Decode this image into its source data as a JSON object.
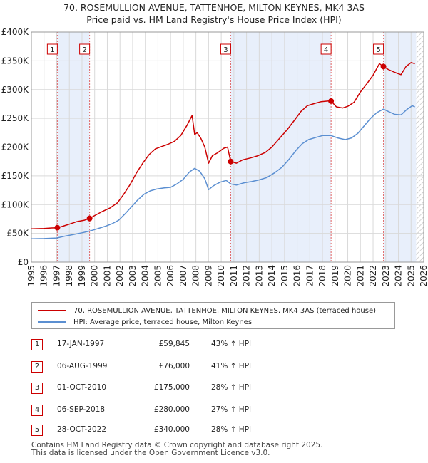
{
  "title_line1": "70, ROSEMULLION AVENUE, TATTENHOE, MILTON KEYNES, MK4 3AS",
  "title_line2": "Price paid vs. HM Land Registry's House Price Index (HPI)",
  "chart_data": {
    "type": "line",
    "title": "70, ROSEMULLION AVENUE, TATTENHOE, MILTON KEYNES, MK4 3AS — Price paid vs. HM Land Registry's House Price Index (HPI)",
    "xlabel": "",
    "ylabel": "",
    "xlim": [
      1995,
      2026
    ],
    "ylim": [
      0,
      400000
    ],
    "x_ticks": [
      "1995",
      "1996",
      "1997",
      "1998",
      "1999",
      "2000",
      "2001",
      "2002",
      "2003",
      "2004",
      "2005",
      "2006",
      "2007",
      "2008",
      "2009",
      "2010",
      "2011",
      "2012",
      "2013",
      "2014",
      "2015",
      "2016",
      "2017",
      "2018",
      "2019",
      "2020",
      "2021",
      "2022",
      "2023",
      "2024",
      "2025",
      "2026"
    ],
    "y_ticks": [
      {
        "value": 0,
        "label": "£0"
      },
      {
        "value": 50000,
        "label": "£50K"
      },
      {
        "value": 100000,
        "label": "£100K"
      },
      {
        "value": 150000,
        "label": "£150K"
      },
      {
        "value": 200000,
        "label": "£200K"
      },
      {
        "value": 250000,
        "label": "£250K"
      },
      {
        "value": 300000,
        "label": "£300K"
      },
      {
        "value": 350000,
        "label": "£350K"
      },
      {
        "value": 400000,
        "label": "£400K"
      }
    ],
    "series": [
      {
        "name": "70, ROSEMULLION AVENUE, TATTENHOE, MILTON KEYNES, MK4 3AS (terraced house)",
        "color": "#cc0000",
        "points": [
          [
            1995.0,
            58000
          ],
          [
            1996.0,
            58500
          ],
          [
            1996.6,
            59500
          ],
          [
            1997.05,
            59845
          ],
          [
            1997.5,
            62500
          ],
          [
            1998.0,
            66000
          ],
          [
            1998.6,
            70500
          ],
          [
            1999.2,
            73000
          ],
          [
            1999.6,
            76000
          ],
          [
            2000.0,
            81000
          ],
          [
            2000.6,
            88000
          ],
          [
            2001.2,
            94000
          ],
          [
            2001.8,
            103000
          ],
          [
            2002.3,
            118000
          ],
          [
            2002.8,
            135000
          ],
          [
            2003.3,
            155000
          ],
          [
            2003.8,
            172000
          ],
          [
            2004.3,
            187000
          ],
          [
            2004.8,
            197000
          ],
          [
            2005.3,
            201000
          ],
          [
            2005.8,
            205000
          ],
          [
            2006.3,
            210000
          ],
          [
            2006.8,
            220000
          ],
          [
            2007.3,
            238000
          ],
          [
            2007.7,
            255000
          ],
          [
            2007.9,
            222000
          ],
          [
            2008.1,
            225000
          ],
          [
            2008.4,
            215000
          ],
          [
            2008.7,
            200000
          ],
          [
            2009.0,
            172000
          ],
          [
            2009.3,
            185000
          ],
          [
            2009.7,
            190000
          ],
          [
            2010.2,
            198000
          ],
          [
            2010.5,
            200000
          ],
          [
            2010.75,
            175000
          ],
          [
            2011.2,
            172000
          ],
          [
            2011.7,
            178000
          ],
          [
            2012.3,
            181000
          ],
          [
            2012.9,
            185000
          ],
          [
            2013.5,
            191000
          ],
          [
            2014.0,
            200000
          ],
          [
            2014.6,
            215000
          ],
          [
            2015.2,
            230000
          ],
          [
            2015.8,
            247000
          ],
          [
            2016.3,
            262000
          ],
          [
            2016.8,
            272000
          ],
          [
            2017.4,
            276000
          ],
          [
            2017.9,
            279000
          ],
          [
            2018.4,
            280000
          ],
          [
            2018.68,
            280000
          ],
          [
            2019.1,
            270000
          ],
          [
            2019.6,
            268000
          ],
          [
            2020.0,
            271000
          ],
          [
            2020.5,
            278000
          ],
          [
            2021.0,
            296000
          ],
          [
            2021.5,
            310000
          ],
          [
            2022.0,
            325000
          ],
          [
            2022.5,
            345000
          ],
          [
            2022.82,
            340000
          ],
          [
            2023.2,
            335000
          ],
          [
            2023.7,
            330000
          ],
          [
            2024.2,
            326000
          ],
          [
            2024.6,
            340000
          ],
          [
            2025.0,
            347000
          ],
          [
            2025.3,
            345000
          ]
        ]
      },
      {
        "name": "HPI: Average price, terraced house, Milton Keynes",
        "color": "#5b8fd1",
        "points": [
          [
            1995.0,
            40500
          ],
          [
            1996.0,
            41000
          ],
          [
            1997.0,
            42000
          ],
          [
            1997.6,
            45000
          ],
          [
            1998.2,
            47500
          ],
          [
            1999.0,
            51000
          ],
          [
            1999.6,
            54000
          ],
          [
            2000.2,
            58000
          ],
          [
            2000.8,
            62000
          ],
          [
            2001.4,
            67000
          ],
          [
            2001.9,
            73000
          ],
          [
            2002.4,
            84000
          ],
          [
            2002.9,
            96000
          ],
          [
            2003.4,
            108000
          ],
          [
            2003.9,
            118000
          ],
          [
            2004.4,
            124000
          ],
          [
            2004.9,
            127000
          ],
          [
            2005.5,
            129000
          ],
          [
            2006.0,
            130000
          ],
          [
            2006.5,
            136000
          ],
          [
            2007.0,
            144000
          ],
          [
            2007.5,
            157000
          ],
          [
            2007.9,
            163000
          ],
          [
            2008.3,
            158000
          ],
          [
            2008.7,
            145000
          ],
          [
            2009.0,
            126000
          ],
          [
            2009.4,
            133000
          ],
          [
            2009.9,
            139000
          ],
          [
            2010.4,
            142000
          ],
          [
            2010.75,
            136000
          ],
          [
            2011.2,
            134000
          ],
          [
            2011.8,
            138000
          ],
          [
            2012.4,
            140000
          ],
          [
            2013.0,
            143000
          ],
          [
            2013.6,
            147000
          ],
          [
            2014.2,
            155000
          ],
          [
            2014.8,
            165000
          ],
          [
            2015.4,
            180000
          ],
          [
            2015.9,
            194000
          ],
          [
            2016.4,
            206000
          ],
          [
            2016.9,
            213000
          ],
          [
            2017.5,
            217000
          ],
          [
            2018.0,
            220000
          ],
          [
            2018.68,
            220000
          ],
          [
            2019.2,
            216000
          ],
          [
            2019.8,
            213000
          ],
          [
            2020.3,
            216000
          ],
          [
            2020.8,
            224000
          ],
          [
            2021.3,
            237000
          ],
          [
            2021.8,
            250000
          ],
          [
            2022.3,
            260000
          ],
          [
            2022.82,
            266000
          ],
          [
            2023.2,
            262000
          ],
          [
            2023.7,
            257000
          ],
          [
            2024.2,
            256000
          ],
          [
            2024.7,
            266000
          ],
          [
            2025.1,
            272000
          ],
          [
            2025.3,
            270000
          ]
        ]
      }
    ],
    "sales": [
      {
        "n": "1",
        "x": 1997.05,
        "value": 59845,
        "date": "17-JAN-1997",
        "price": "£59,845",
        "hpi": "43% ↑ HPI"
      },
      {
        "n": "2",
        "x": 1999.6,
        "value": 76000,
        "date": "06-AUG-1999",
        "price": "£76,000",
        "hpi": "41% ↑ HPI"
      },
      {
        "n": "3",
        "x": 2010.75,
        "value": 175000,
        "date": "01-OCT-2010",
        "price": "£175,000",
        "hpi": "28% ↑ HPI"
      },
      {
        "n": "4",
        "x": 2018.68,
        "value": 280000,
        "date": "06-SEP-2018",
        "price": "£280,000",
        "hpi": "27% ↑ HPI"
      },
      {
        "n": "5",
        "x": 2022.82,
        "value": 340000,
        "date": "28-OCT-2022",
        "price": "£340,000",
        "hpi": "28% ↑ HPI"
      }
    ],
    "shaded_ranges": [
      [
        1997.05,
        1999.6
      ],
      [
        2010.75,
        2018.68
      ],
      [
        2022.82,
        2025.4
      ]
    ],
    "future_hatch_from": 2025.4,
    "grid": true
  },
  "legend": {
    "property_label": "70, ROSEMULLION AVENUE, TATTENHOE, MILTON KEYNES, MK4 3AS (terraced house)",
    "hpi_label": "HPI: Average price, terraced house, Milton Keynes"
  },
  "footer": {
    "line1": "Contains HM Land Registry data © Crown copyright and database right 2025.",
    "line2": "This data is licensed under the Open Government Licence v3.0."
  }
}
